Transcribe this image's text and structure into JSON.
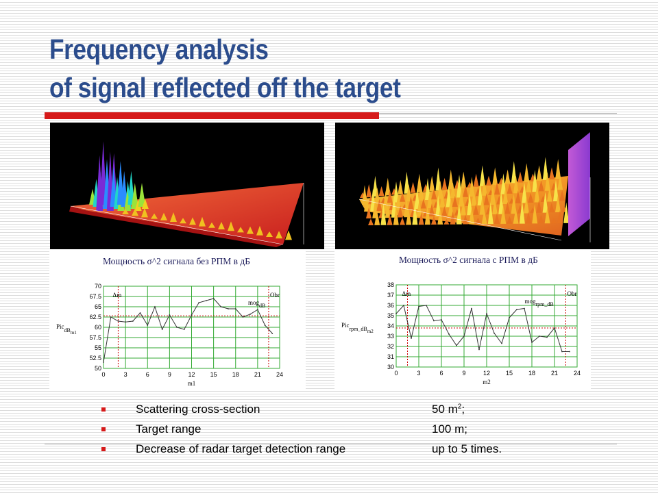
{
  "slide": {
    "title_line1": "Frequency analysis",
    "title_line2": "of signal reflected off the target"
  },
  "colors": {
    "title": "#2b4c8c",
    "accent_bar": "#d61a1a",
    "grid": "#33aa33",
    "series": "#333333",
    "marker": "#cc0000"
  },
  "chart_data": [
    {
      "type": "line",
      "title": "Мощность σ^2 сигнала без РПМ в дБ",
      "xlabel": "m1",
      "ylabel_main": "Pic",
      "ylabel_sub": "dB",
      "ylabel_sub2": "m1",
      "annot_left": "Δm",
      "annot_right": "Obr",
      "annot_mog_main": "mog",
      "annot_mog_sub": "dB",
      "xlim": [
        0,
        24
      ],
      "ylim": [
        50,
        70
      ],
      "xticks": [
        "0",
        "3",
        "6",
        "9",
        "12",
        "15",
        "18",
        "21",
        "24"
      ],
      "yticks": [
        "50",
        "52.5",
        "55",
        "57.5",
        "60",
        "62.5",
        "65",
        "67.5",
        "70"
      ],
      "x": [
        0,
        1,
        2,
        3,
        4,
        5,
        6,
        7,
        8,
        9,
        10,
        11,
        12,
        13,
        14,
        15,
        16,
        17,
        18,
        19,
        20,
        21,
        22,
        23
      ],
      "values": [
        51.5,
        62.5,
        61.5,
        61.3,
        61.5,
        63.5,
        60.5,
        65,
        59.5,
        63,
        60,
        59.5,
        63,
        66,
        66.5,
        67,
        65,
        64.5,
        64.5,
        62.5,
        63.2,
        64.3,
        60.5,
        58.5
      ],
      "ref_line_y": 62.8,
      "marker_lines_x": [
        2,
        22.5
      ]
    },
    {
      "type": "line",
      "title": "Мощность σ^2 сигнала с РПМ в дБ",
      "xlabel": "m2",
      "ylabel_main": "Pic",
      "ylabel_sub": "rpm_dB",
      "ylabel_sub2": "m2",
      "annot_left": "Δm",
      "annot_right": "Obr",
      "annot_mog_main": "mog",
      "annot_mog_sub": "rpm_dB",
      "xlim": [
        0,
        24
      ],
      "ylim": [
        30,
        38
      ],
      "xticks": [
        "0",
        "3",
        "6",
        "9",
        "12",
        "15",
        "18",
        "21",
        "24"
      ],
      "yticks": [
        "30",
        "31",
        "32",
        "33",
        "34",
        "35",
        "36",
        "37",
        "38"
      ],
      "x": [
        0,
        1,
        2,
        3,
        4,
        5,
        6,
        7,
        8,
        9,
        10,
        11,
        12,
        13,
        14,
        15,
        16,
        17,
        18,
        19,
        20,
        21,
        22,
        23
      ],
      "values": [
        35.2,
        36,
        32.8,
        35.9,
        36,
        34.5,
        34.6,
        33.2,
        32.1,
        33,
        35.7,
        31.7,
        35.2,
        33.3,
        32.3,
        34.8,
        35.6,
        35.7,
        32.4,
        33,
        32.9,
        33.8,
        31.5,
        31.5
      ],
      "ref_line_y": 33.8,
      "marker_lines_x": [
        1.5,
        22.5
      ]
    }
  ],
  "bullets": [
    {
      "label": "Scattering cross-section",
      "value": "50 m",
      "value_sup": "2",
      "value_suffix": ";"
    },
    {
      "label": "Target range",
      "value": "100 m;",
      "value_sup": "",
      "value_suffix": ""
    },
    {
      "label": "Decrease of radar target detection range",
      "value": "up to 5 times.",
      "value_sup": "",
      "value_suffix": ""
    }
  ]
}
